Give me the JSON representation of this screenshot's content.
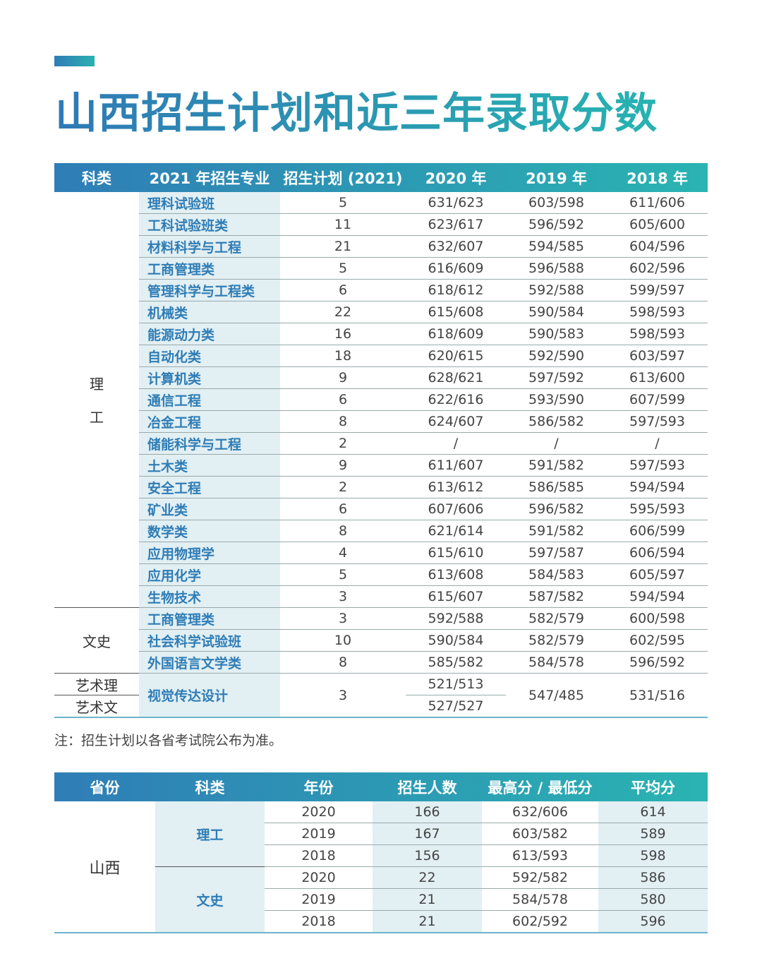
{
  "title": "山西招生计划和近三年录取分数",
  "table1": {
    "header": [
      "科类",
      "2021 年招生专业",
      "招生计划 (2021)",
      "2020 年",
      "2019 年",
      "2018 年"
    ],
    "groups": [
      {
        "category": [
          "理",
          "工"
        ],
        "rows": [
          [
            "理科试验班",
            5,
            "631/623",
            "603/598",
            "611/606"
          ],
          [
            "工科试验班类",
            11,
            "623/617",
            "596/592",
            "605/600"
          ],
          [
            "材料科学与工程",
            21,
            "632/607",
            "594/585",
            "604/596"
          ],
          [
            "工商管理类",
            5,
            "616/609",
            "596/588",
            "602/596"
          ],
          [
            "管理科学与工程类",
            6,
            "618/612",
            "592/588",
            "599/597"
          ],
          [
            "机械类",
            22,
            "615/608",
            "590/584",
            "598/593"
          ],
          [
            "能源动力类",
            16,
            "618/609",
            "590/583",
            "598/593"
          ],
          [
            "自动化类",
            18,
            "620/615",
            "592/590",
            "603/597"
          ],
          [
            "计算机类",
            9,
            "628/621",
            "597/592",
            "613/600"
          ],
          [
            "通信工程",
            6,
            "622/616",
            "593/590",
            "607/599"
          ],
          [
            "冶金工程",
            8,
            "624/607",
            "586/582",
            "597/593"
          ],
          [
            "储能科学与工程",
            2,
            "/",
            "/",
            "/"
          ],
          [
            "土木类",
            9,
            "611/607",
            "591/582",
            "597/593"
          ],
          [
            "安全工程",
            2,
            "613/612",
            "586/585",
            "594/594"
          ],
          [
            "矿业类",
            6,
            "607/606",
            "596/582",
            "595/593"
          ],
          [
            "数学类",
            8,
            "621/614",
            "591/582",
            "606/599"
          ],
          [
            "应用物理学",
            4,
            "615/610",
            "597/587",
            "606/594"
          ],
          [
            "应用化学",
            5,
            "613/608",
            "584/583",
            "605/597"
          ],
          [
            "生物技术",
            3,
            "615/607",
            "587/582",
            "594/594"
          ]
        ]
      },
      {
        "category": [
          "文史"
        ],
        "rows": [
          [
            "工商管理类",
            3,
            "592/588",
            "582/579",
            "600/598"
          ],
          [
            "社会科学试验班",
            10,
            "590/584",
            "582/579",
            "602/595"
          ],
          [
            "外国语言文学类",
            8,
            "585/582",
            "584/578",
            "596/592"
          ]
        ]
      }
    ],
    "art": {
      "categories": [
        "艺术理",
        "艺术文"
      ],
      "major": "视觉传达设计",
      "plan": 3,
      "y2020": [
        "521/513",
        "527/527"
      ],
      "y2019": "547/485",
      "y2018": "531/516"
    }
  },
  "note": "注：招生计划以各省考试院公布为准。",
  "table2": {
    "header": [
      "省份",
      "科类",
      "年份",
      "招生人数",
      "最高分 / 最低分",
      "平均分"
    ],
    "province": "山西",
    "groups": [
      {
        "category": "理工",
        "rows": [
          [
            2020,
            166,
            "632/606",
            614
          ],
          [
            2019,
            167,
            "603/582",
            589
          ],
          [
            2018,
            156,
            "613/593",
            598
          ]
        ]
      },
      {
        "category": "文史",
        "rows": [
          [
            2020,
            22,
            "592/582",
            586
          ],
          [
            2019,
            21,
            "584/578",
            580
          ],
          [
            2018,
            21,
            "602/592",
            596
          ]
        ]
      }
    ]
  }
}
